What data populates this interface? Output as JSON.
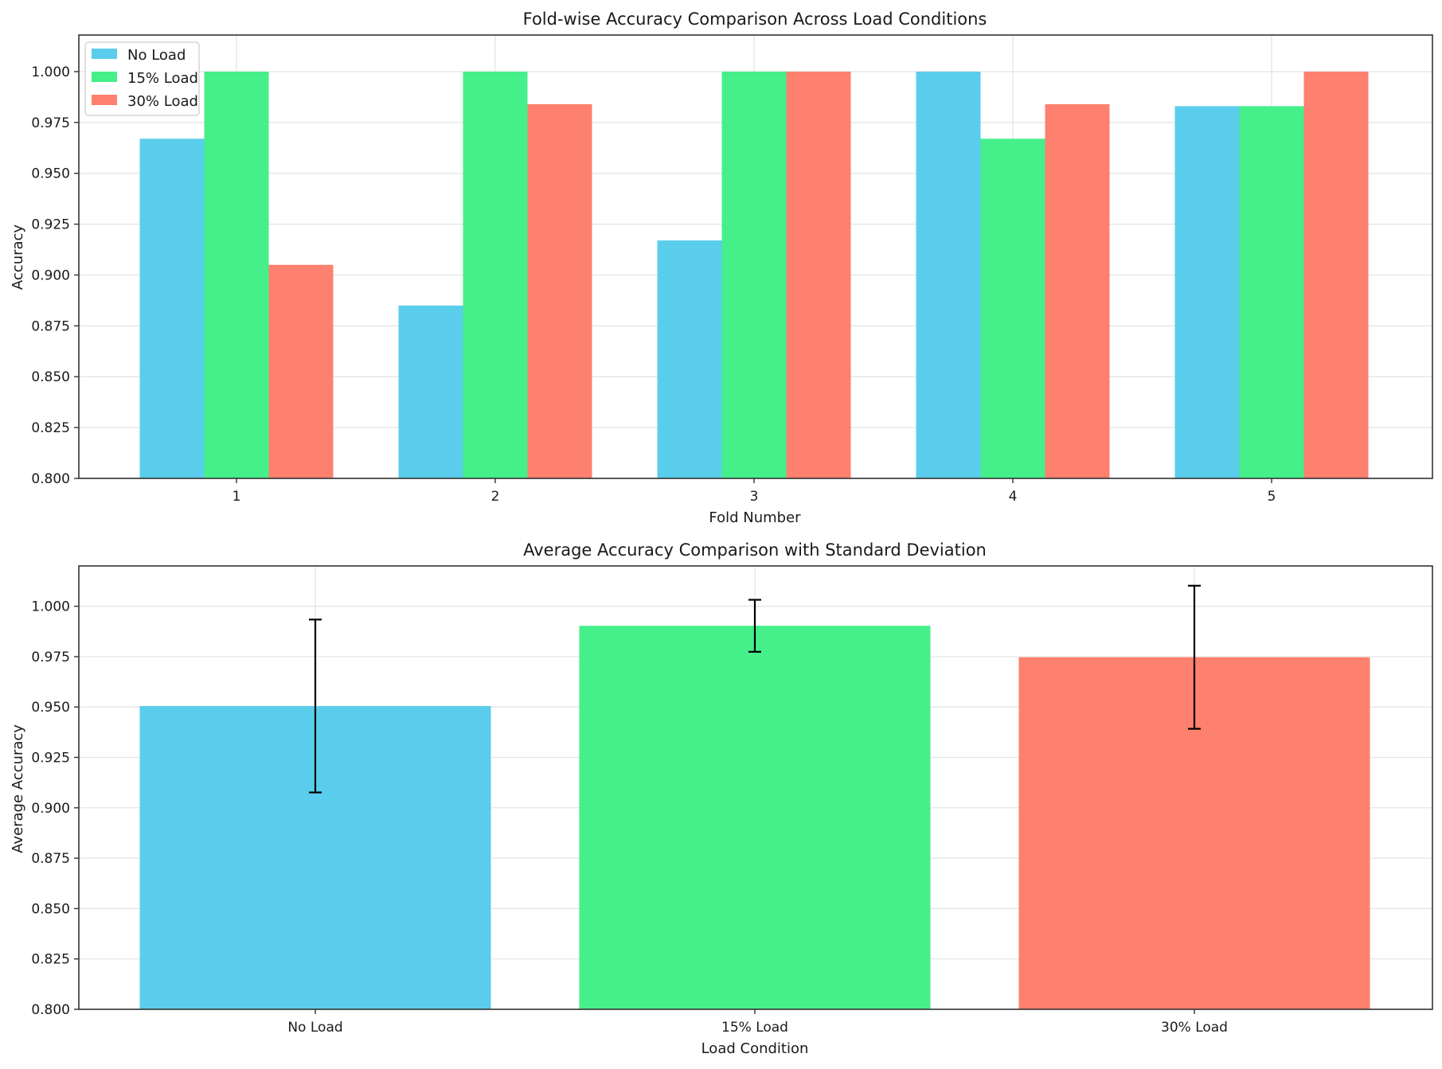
{
  "chart_data": [
    {
      "type": "bar",
      "title": "Fold-wise Accuracy Comparison Across Load Conditions",
      "xlabel": "Fold Number",
      "ylabel": "Accuracy",
      "categories": [
        "1",
        "2",
        "3",
        "4",
        "5"
      ],
      "ylim": [
        0.8,
        1.018
      ],
      "yticks": [
        "0.800",
        "0.825",
        "0.850",
        "0.875",
        "0.900",
        "0.925",
        "0.950",
        "0.975",
        "1.000"
      ],
      "grid": true,
      "legend_position": "top-left",
      "series": [
        {
          "name": "No Load",
          "color": "#5bcdec",
          "values": [
            0.967,
            0.885,
            0.917,
            1.0,
            0.983
          ]
        },
        {
          "name": "15% Load",
          "color": "#45ef8a",
          "values": [
            1.0,
            1.0,
            1.0,
            0.967,
            0.983
          ]
        },
        {
          "name": "30% Load",
          "color": "#fe806e",
          "values": [
            0.905,
            0.984,
            1.0,
            0.984,
            1.0
          ]
        }
      ]
    },
    {
      "type": "bar",
      "title": "Average Accuracy Comparison with Standard Deviation",
      "xlabel": "Load Condition",
      "ylabel": "Average Accuracy",
      "categories": [
        "No Load",
        "15% Load",
        "30% Load"
      ],
      "ylim": [
        0.8,
        1.02
      ],
      "yticks": [
        "0.800",
        "0.825",
        "0.850",
        "0.875",
        "0.900",
        "0.925",
        "0.950",
        "0.975",
        "1.000"
      ],
      "grid": true,
      "colors": [
        "#5bcdec",
        "#45ef8a",
        "#fe806e"
      ],
      "values": [
        0.9505,
        0.9903,
        0.9747
      ],
      "std": [
        0.0429,
        0.0129,
        0.0355
      ]
    }
  ]
}
